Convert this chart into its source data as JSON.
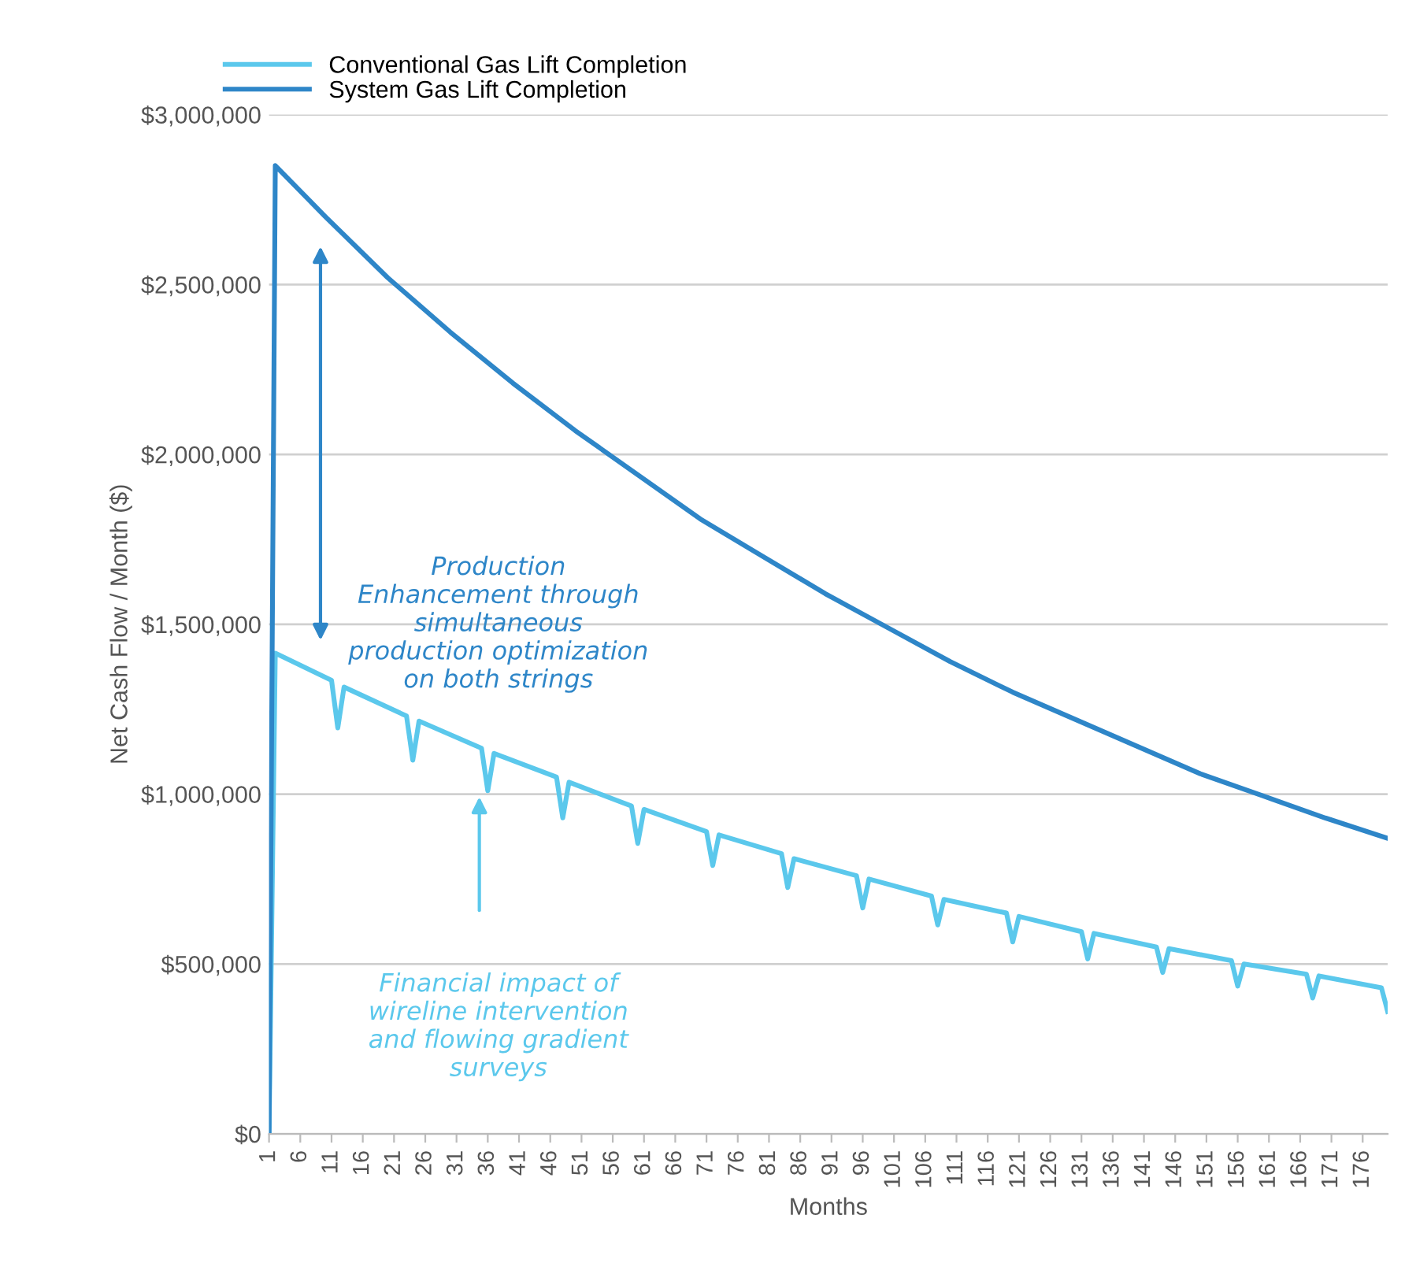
{
  "chart_data": {
    "type": "line",
    "ylabel": "Net Cash Flow / Month ($)",
    "xlabel": "Months",
    "xlim": [
      1,
      180
    ],
    "xticks": [
      1,
      6,
      11,
      16,
      21,
      26,
      31,
      36,
      41,
      46,
      51,
      56,
      61,
      66,
      71,
      76,
      81,
      86,
      91,
      96,
      101,
      106,
      111,
      116,
      121,
      126,
      131,
      136,
      141,
      146,
      151,
      156,
      161,
      166,
      171,
      176
    ],
    "ylim": [
      0,
      3000000
    ],
    "yticks": [
      {
        "value": 0,
        "label": "$0"
      },
      {
        "value": 500000,
        "label": "$500,000"
      },
      {
        "value": 1000000,
        "label": "$1,000,000"
      },
      {
        "value": 1500000,
        "label": "$1,500,000"
      },
      {
        "value": 2000000,
        "label": "$2,000,000"
      },
      {
        "value": 2500000,
        "label": "$2,500,000"
      },
      {
        "value": 3000000,
        "label": "$3,000,000"
      }
    ],
    "grid": "y",
    "legend": "top left",
    "marker": "none",
    "line_style": "solid",
    "series": [
      {
        "name": "Conventional Gas Lift Completion",
        "color": "#5bc8ec",
        "x": [
          1,
          2,
          11,
          12,
          13,
          23,
          24,
          25,
          35,
          36,
          37,
          47,
          48,
          49,
          59,
          60,
          61,
          71,
          72,
          73,
          83,
          84,
          85,
          95,
          96,
          97,
          107,
          108,
          109,
          119,
          120,
          121,
          131,
          132,
          133,
          143,
          144,
          145,
          155,
          156,
          157,
          167,
          168,
          169,
          179,
          180
        ],
        "values": [
          0,
          1415000,
          1335000,
          1195000,
          1315000,
          1230000,
          1100000,
          1215000,
          1135000,
          1010000,
          1120000,
          1050000,
          930000,
          1035000,
          965000,
          855000,
          955000,
          890000,
          790000,
          880000,
          825000,
          725000,
          810000,
          760000,
          665000,
          750000,
          700000,
          615000,
          690000,
          650000,
          565000,
          640000,
          595000,
          515000,
          590000,
          550000,
          475000,
          545000,
          510000,
          435000,
          500000,
          470000,
          400000,
          465000,
          430000,
          360000
        ]
      },
      {
        "name": "System Gas Lift Completion",
        "color": "#2e86c8",
        "x": [
          1,
          2,
          10,
          20,
          30,
          40,
          50,
          60,
          70,
          80,
          90,
          100,
          110,
          120,
          130,
          140,
          150,
          160,
          170,
          180
        ],
        "values": [
          0,
          2850000,
          2700000,
          2520000,
          2360000,
          2210000,
          2070000,
          1940000,
          1810000,
          1700000,
          1590000,
          1490000,
          1390000,
          1300000,
          1220000,
          1140000,
          1060000,
          995000,
          930000,
          870000
        ]
      }
    ],
    "annotations": [
      "Production\nEnhancement through\nsimultaneous\nproduction optimization\non both strings",
      "Financial impact of\nwireline intervention\nand flowing gradient\nsurveys"
    ]
  }
}
